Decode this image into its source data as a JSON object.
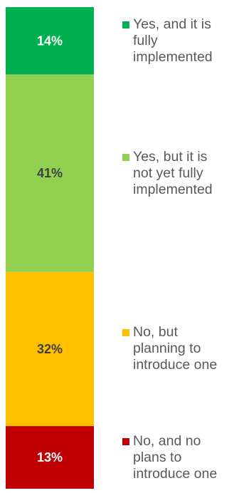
{
  "chart_data": {
    "type": "bar",
    "stacked": true,
    "orientation": "vertical",
    "series": [
      {
        "name": "Yes, and it is\nfully\nimplemented",
        "value": 14,
        "label": "14%",
        "color": "#00B050",
        "label_color": "#ffffff"
      },
      {
        "name": "Yes, but it is\nnot yet fully\nimplemented",
        "value": 41,
        "label": "41%",
        "color": "#92D050",
        "label_color": "#404040"
      },
      {
        "name": "No, but\nplanning to\nintroduce one",
        "value": 32,
        "label": "32%",
        "color": "#FFC000",
        "label_color": "#404040"
      },
      {
        "name": "No, and no\nplans to\nintroduce one",
        "value": 13,
        "label": "13%",
        "color": "#C00000",
        "label_color": "#ffffff"
      }
    ],
    "legend_position": "right",
    "grid": false,
    "axes": false
  }
}
